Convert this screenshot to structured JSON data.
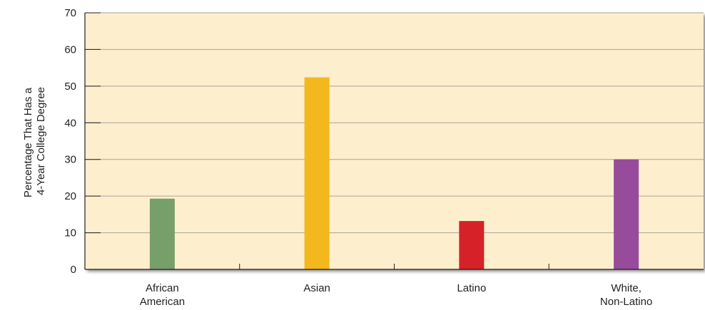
{
  "chart_data": {
    "type": "bar",
    "title": "",
    "xlabel": "",
    "ylabel_lines": [
      "Percentage That Has a",
      "4-Year College Degree"
    ],
    "categories": [
      [
        "African",
        "American"
      ],
      [
        "Asian"
      ],
      [
        "Latino"
      ],
      [
        "White,",
        "Non-Latino"
      ]
    ],
    "values": [
      19.3,
      52.4,
      13.2,
      30
    ],
    "colors": [
      "#779f69",
      "#f2b81e",
      "#d62128",
      "#974b9b"
    ],
    "ylim": [
      0,
      70
    ],
    "yticks": [
      "0",
      "10",
      "20",
      "30",
      "40",
      "50",
      "60",
      "70"
    ],
    "grid": true,
    "plot_background": "#fdefcd",
    "grid_color": "#a8a29a"
  }
}
